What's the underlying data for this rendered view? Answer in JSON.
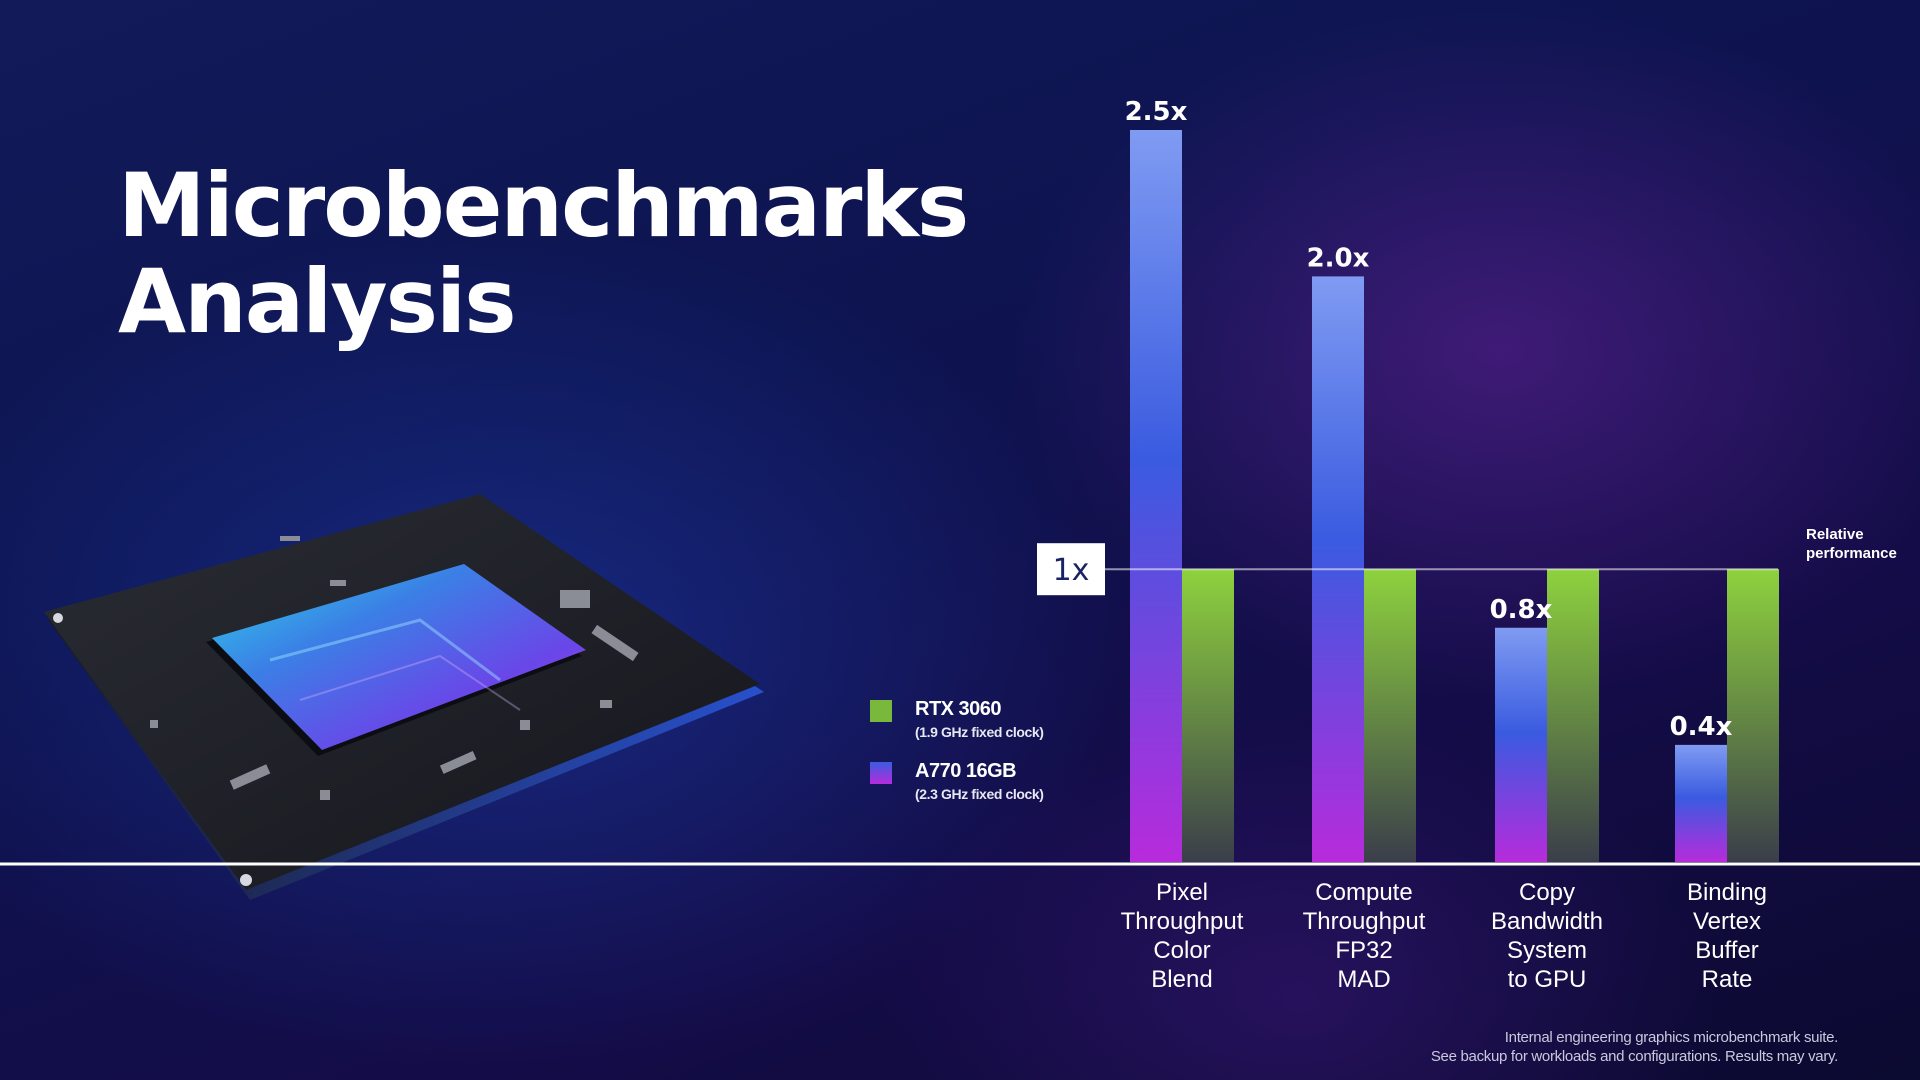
{
  "slide": {
    "title_line1": "Microbenchmarks",
    "title_line2": "Analysis",
    "footnote_line1": "Internal engineering graphics microbenchmark suite.",
    "footnote_line2": "See backup for workloads and configurations. Results may vary."
  },
  "legend": [
    {
      "name": "RTX 3060",
      "sub": "(1.9 GHz fixed clock)",
      "color": "#7ab83c"
    },
    {
      "name": "A770 16GB",
      "sub": "(2.3 GHz fixed clock)",
      "color": "#5a5cf0"
    }
  ],
  "colors": {
    "a770_top": "#7f9bf2",
    "a770_mid": "#3a5be0",
    "a770_bottom": "#b72bdc",
    "rtx_top": "#8ed23e",
    "rtx_bottom": "#3a3e4a",
    "baseline_badge_bg": "#ffffff",
    "baseline_badge_text": "#1a2266"
  },
  "chart_data": {
    "type": "bar",
    "categories": [
      [
        "Pixel",
        "Throughput",
        "Color",
        "Blend"
      ],
      [
        "Compute",
        "Throughput",
        "FP32",
        "MAD"
      ],
      [
        "Copy",
        "Bandwidth",
        "System",
        "to GPU"
      ],
      [
        "Binding",
        "Vertex",
        "Buffer",
        "Rate"
      ]
    ],
    "series": [
      {
        "name": "A770 16GB",
        "values": [
          2.5,
          2.0,
          0.8,
          0.4
        ]
      },
      {
        "name": "RTX 3060",
        "values": [
          1.0,
          1.0,
          1.0,
          1.0
        ]
      }
    ],
    "data_labels": [
      "2.5x",
      "2.0x",
      "0.8x",
      "0.4x"
    ],
    "baseline": {
      "value": 1.0,
      "label": "1x",
      "annotation": [
        "Relative",
        "performance"
      ]
    },
    "title": "",
    "ylim": [
      0,
      2.5
    ],
    "grid": false
  }
}
